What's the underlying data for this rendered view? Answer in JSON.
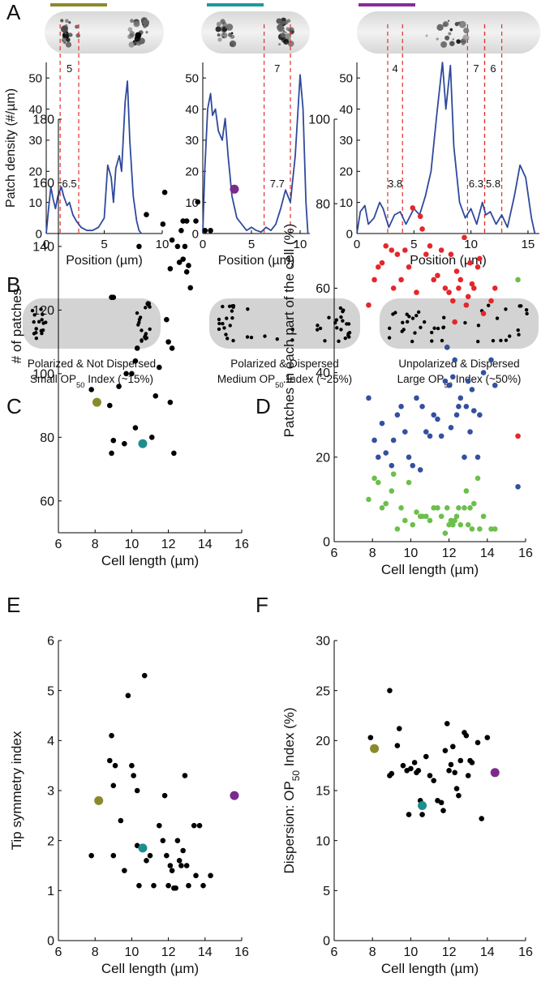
{
  "panel_labels": [
    "A",
    "B",
    "C",
    "D",
    "E",
    "F"
  ],
  "diagram": {
    "captions": [
      {
        "line1": "Polarized & Not Dispersed",
        "line2": [
          "Small OP",
          "50",
          " Index (~15%)"
        ]
      },
      {
        "line1": "Polarized & Dispersed",
        "line2": [
          "Medium OP",
          "50",
          " Index (~25%)"
        ]
      },
      {
        "line1": "Unpolarized & Dispersed",
        "line2": [
          "Large OP",
          "50",
          " Index (~50%)"
        ]
      }
    ]
  },
  "chart_data": [
    {
      "type": "line",
      "ylabel": "Patch density (#/µm)",
      "xlabel": "Position (µm)",
      "xlim": [
        0,
        10
      ],
      "ylim": [
        0,
        55
      ],
      "xticks": [
        0,
        5,
        10
      ],
      "yticks": [
        0,
        10,
        20,
        30,
        40,
        50
      ],
      "color": "#2f4a9c",
      "x": [
        0,
        0.2,
        0.4,
        0.6,
        0.8,
        1.0,
        1.3,
        1.5,
        1.8,
        2.0,
        2.3,
        2.6,
        3.0,
        3.5,
        4.0,
        4.5,
        5.0,
        5.3,
        5.6,
        5.8,
        6.0,
        6.3,
        6.5,
        6.8,
        7.0,
        7.2,
        7.5,
        7.8,
        8.0,
        8.2
      ],
      "values": [
        0,
        8,
        15,
        11,
        8,
        12,
        15,
        12,
        9,
        10,
        6,
        4,
        2,
        1,
        1,
        2,
        5,
        22,
        18,
        10,
        21,
        25,
        20,
        42,
        49,
        30,
        12,
        4,
        1,
        0
      ],
      "region_color": "#e03030",
      "regions": [
        [
          1.2,
          2.8
        ]
      ],
      "region_counts": [
        5
      ],
      "region_densities": [
        6.5
      ],
      "density_color": "#2f4a9c"
    },
    {
      "type": "line",
      "xlabel": "Position (µm)",
      "xlim": [
        0,
        11
      ],
      "ylim": [
        0,
        55
      ],
      "xticks": [
        0,
        5,
        10
      ],
      "yticks": [
        0,
        10,
        20,
        30,
        40,
        50
      ],
      "color": "#2f4a9c",
      "x": [
        0,
        0.2,
        0.5,
        0.8,
        1.0,
        1.3,
        1.6,
        2.0,
        2.3,
        2.6,
        3.0,
        3.5,
        4.0,
        4.5,
        5.0,
        5.5,
        6.0,
        6.5,
        7.0,
        7.5,
        8.0,
        8.5,
        9.0,
        9.5,
        10.0,
        10.3,
        10.6,
        10.8
      ],
      "values": [
        0,
        20,
        40,
        45,
        38,
        40,
        33,
        30,
        37,
        25,
        12,
        5,
        3,
        1,
        2,
        1,
        0.5,
        2,
        1,
        3,
        8,
        14,
        10,
        25,
        51,
        40,
        10,
        0
      ],
      "region_color": "#e03030",
      "regions": [
        [
          6.3,
          9.0
        ]
      ],
      "region_counts": [
        7
      ],
      "region_densities": [
        7.7
      ],
      "density_color": "#2f4a9c"
    },
    {
      "type": "line",
      "xlabel": "Position (µm)",
      "xlim": [
        0,
        16
      ],
      "ylim": [
        0,
        55
      ],
      "xticks": [
        0,
        5,
        10,
        15
      ],
      "yticks": [
        0,
        10,
        20,
        30,
        40,
        50
      ],
      "color": "#2f4a9c",
      "x": [
        0,
        0.3,
        0.7,
        1.0,
        1.5,
        2.0,
        2.3,
        2.8,
        3.3,
        3.8,
        4.3,
        5.0,
        5.5,
        6.0,
        6.5,
        7.0,
        7.5,
        7.8,
        8.2,
        8.5,
        9.0,
        9.5,
        10.0,
        10.5,
        11.0,
        11.3,
        11.7,
        12.2,
        12.7,
        13.2,
        13.8,
        14.3,
        14.8,
        15.3,
        15.6
      ],
      "values": [
        0,
        7,
        9,
        3,
        5,
        10,
        8,
        2,
        6,
        7,
        3,
        8,
        6,
        12,
        20,
        38,
        55,
        40,
        54,
        28,
        10,
        5,
        8,
        3,
        10,
        6,
        7,
        3,
        6,
        2,
        12,
        22,
        18,
        5,
        0
      ],
      "region_color": "#e03030",
      "regions": [
        [
          2.7,
          4.0
        ],
        [
          9.7,
          11.2
        ],
        [
          11.2,
          12.7
        ]
      ],
      "region_counts": [
        4,
        7,
        6
      ],
      "region_densities": [
        3.8,
        6.3,
        5.8
      ],
      "density_color": "#2f4a9c"
    },
    {
      "type": "scatter",
      "xlabel": "Cell length (µm)",
      "ylabel": "# of patches",
      "xlim": [
        6,
        16
      ],
      "ylim": [
        50,
        180
      ],
      "xticks": [
        6,
        8,
        10,
        12,
        14,
        16
      ],
      "yticks": [
        60,
        80,
        100,
        120,
        140,
        160,
        180
      ],
      "series": [
        {
          "color": "#000000",
          "x": [
            7.8,
            8.8,
            8.9,
            9.0,
            9.0,
            8.9,
            9.3,
            9.6,
            9.7,
            10.0,
            10.2,
            10.4,
            10.2,
            10.3,
            10.8,
            10.9,
            11.1,
            11.3,
            11.5,
            11.7,
            11.8,
            11.9,
            12.0,
            12.1,
            12.2,
            12.1,
            12.2,
            12.3,
            12.5,
            12.6,
            12.7,
            12.8,
            12.9,
            12.8,
            13.0,
            13.1,
            13.2,
            13.0,
            13.5,
            13.6,
            14.0,
            14.3
          ],
          "values": [
            95,
            90,
            75,
            79,
            124,
            124,
            96,
            78,
            100,
            100,
            104,
            140,
            83,
            108,
            150,
            122,
            80,
            93,
            102,
            147,
            157,
            117,
            110,
            133,
            108,
            91,
            142,
            75,
            140,
            135,
            145,
            148,
            140,
            136,
            148,
            134,
            127,
            132,
            148,
            154,
            145,
            145
          ]
        },
        {
          "color": "#8a8a2c",
          "x": [
            8.1
          ],
          "values": [
            91
          ]
        },
        {
          "color": "#1d8e8e",
          "x": [
            10.6
          ],
          "values": [
            78
          ]
        },
        {
          "color": "#7c2a8c",
          "x": [
            15.6
          ],
          "values": [
            158
          ]
        }
      ]
    },
    {
      "type": "scatter",
      "xlabel": "Cell length (µm)",
      "ylabel": "Patches in each part of the cell (%)",
      "xlim": [
        6,
        16
      ],
      "ylim": [
        0,
        100
      ],
      "xticks": [
        6,
        8,
        10,
        12,
        14,
        16
      ],
      "yticks": [
        0,
        20,
        40,
        60,
        80,
        100
      ],
      "series": [
        {
          "color": "#e5262b",
          "x": [
            7.8,
            8.1,
            8.3,
            8.5,
            8.7,
            9.0,
            9.1,
            9.3,
            9.5,
            9.7,
            9.9,
            10.1,
            10.3,
            10.5,
            10.6,
            10.8,
            11.0,
            11.2,
            11.4,
            11.6,
            11.8,
            11.9,
            12.0,
            12.1,
            12.2,
            12.3,
            12.4,
            12.5,
            12.6,
            12.8,
            12.9,
            13.0,
            13.1,
            13.2,
            13.3,
            13.5,
            13.6,
            13.8,
            14.2,
            14.4,
            15.6
          ],
          "values": [
            56,
            62,
            65,
            66,
            70,
            69,
            60,
            68,
            62,
            69,
            65,
            79,
            59,
            77,
            74,
            68,
            70,
            62,
            63,
            69,
            60,
            46,
            59,
            68,
            57,
            52,
            64,
            60,
            62,
            72,
            56,
            58,
            66,
            61,
            60,
            65,
            67,
            54,
            57,
            60,
            25
          ]
        },
        {
          "color": "#34509f",
          "x": [
            7.8,
            8.1,
            8.3,
            8.5,
            8.7,
            9.0,
            9.1,
            9.3,
            9.5,
            9.7,
            9.9,
            10.1,
            10.3,
            10.5,
            10.6,
            10.8,
            11.0,
            11.2,
            11.4,
            11.6,
            11.8,
            11.9,
            12.0,
            12.1,
            12.2,
            12.3,
            12.4,
            12.5,
            12.6,
            12.8,
            12.9,
            13.0,
            13.1,
            13.2,
            13.3,
            13.5,
            13.6,
            13.8,
            14.2,
            14.4,
            15.6
          ],
          "values": [
            34,
            24,
            20,
            28,
            21,
            18,
            24,
            30,
            32,
            26,
            20,
            18,
            34,
            17,
            32,
            26,
            25,
            30,
            29,
            25,
            38,
            46,
            37,
            27,
            39,
            43,
            30,
            32,
            34,
            20,
            32,
            38,
            26,
            36,
            31,
            20,
            30,
            40,
            43,
            37,
            13
          ]
        },
        {
          "color": "#6cbf4b",
          "x": [
            7.8,
            8.1,
            8.3,
            8.5,
            8.7,
            9.0,
            9.1,
            9.3,
            9.5,
            9.7,
            9.9,
            10.1,
            10.3,
            10.5,
            10.6,
            10.8,
            11.0,
            11.2,
            11.4,
            11.6,
            11.8,
            11.9,
            12.0,
            12.1,
            12.2,
            12.3,
            12.4,
            12.5,
            12.6,
            12.8,
            12.9,
            13.0,
            13.1,
            13.2,
            13.3,
            13.5,
            13.6,
            13.8,
            14.2,
            14.4,
            15.6
          ],
          "values": [
            10,
            15,
            14,
            8,
            9,
            12,
            16,
            3,
            8,
            5,
            14,
            4,
            7,
            6,
            6,
            6,
            5,
            8,
            8,
            6,
            2,
            8,
            4,
            5,
            4,
            5,
            6,
            8,
            4,
            8,
            12,
            4,
            8,
            3,
            9,
            15,
            3,
            6,
            3,
            3,
            62
          ]
        }
      ]
    },
    {
      "type": "scatter",
      "xlabel": "Cell length (µm)",
      "ylabel": "Tip symmetry index",
      "xlim": [
        6,
        16
      ],
      "ylim": [
        0,
        6
      ],
      "xticks": [
        6,
        8,
        10,
        12,
        14,
        16
      ],
      "yticks": [
        0,
        1,
        2,
        3,
        4,
        5,
        6
      ],
      "series": [
        {
          "color": "#000000",
          "x": [
            7.8,
            8.8,
            8.9,
            9.0,
            9.0,
            9.1,
            9.4,
            9.6,
            9.8,
            10.0,
            10.1,
            10.3,
            10.3,
            10.4,
            10.7,
            10.8,
            11.0,
            11.2,
            11.5,
            11.7,
            11.8,
            11.9,
            12.0,
            12.1,
            12.2,
            12.3,
            12.4,
            12.5,
            12.6,
            12.7,
            12.8,
            12.9,
            13.0,
            13.1,
            13.4,
            13.5,
            13.7,
            13.9,
            14.3
          ],
          "values": [
            1.7,
            3.6,
            4.1,
            3.1,
            1.7,
            3.5,
            2.4,
            1.4,
            4.9,
            3.5,
            3.3,
            3.0,
            1.9,
            1.1,
            5.3,
            1.6,
            1.7,
            1.1,
            2.3,
            2.0,
            2.9,
            1.7,
            1.1,
            1.5,
            1.4,
            1.05,
            1.05,
            2.0,
            1.6,
            1.5,
            1.8,
            3.3,
            1.5,
            1.1,
            2.3,
            1.3,
            2.3,
            1.1,
            1.3
          ]
        },
        {
          "color": "#8a8a2c",
          "x": [
            8.2
          ],
          "values": [
            2.8
          ]
        },
        {
          "color": "#1d8e8e",
          "x": [
            10.6
          ],
          "values": [
            1.85
          ]
        },
        {
          "color": "#7c2a8c",
          "x": [
            15.6
          ],
          "values": [
            2.9
          ]
        }
      ]
    },
    {
      "type": "scatter",
      "xlabel": "Cell length (µm)",
      "ylabel_parts": [
        "Dispersion: OP",
        "50",
        " Index (%)"
      ],
      "xlim": [
        6,
        16
      ],
      "ylim": [
        0,
        30
      ],
      "xticks": [
        6,
        8,
        10,
        12,
        14,
        16
      ],
      "yticks": [
        0,
        5,
        10,
        15,
        20,
        25,
        30
      ],
      "series": [
        {
          "color": "#000000",
          "x": [
            7.9,
            8.9,
            8.9,
            9.0,
            9.3,
            9.4,
            9.6,
            9.8,
            9.9,
            10.0,
            10.2,
            10.3,
            10.4,
            10.5,
            10.6,
            10.8,
            11.0,
            11.2,
            11.4,
            11.6,
            11.7,
            11.8,
            11.9,
            12.0,
            12.1,
            12.2,
            12.3,
            12.4,
            12.5,
            12.6,
            12.8,
            12.9,
            13.0,
            13.1,
            13.2,
            13.5,
            13.7,
            14.0
          ],
          "values": [
            20.3,
            25.0,
            16.5,
            16.7,
            19.5,
            21.2,
            17.5,
            17.0,
            12.6,
            17.2,
            17.8,
            16.8,
            17.0,
            14.0,
            12.6,
            18.4,
            16.5,
            16.0,
            14.0,
            13.8,
            13.0,
            19.0,
            21.7,
            17.0,
            17.6,
            19.4,
            16.8,
            15.2,
            14.5,
            18.0,
            20.8,
            20.5,
            16.5,
            18.0,
            17.8,
            19.8,
            12.2,
            20.3
          ]
        },
        {
          "color": "#8a8a2c",
          "x": [
            8.1
          ],
          "values": [
            19.2
          ]
        },
        {
          "color": "#1d8e8e",
          "x": [
            10.6
          ],
          "values": [
            13.5
          ]
        },
        {
          "color": "#7c2a8c",
          "x": [
            14.4
          ],
          "values": [
            16.8
          ]
        }
      ]
    }
  ]
}
